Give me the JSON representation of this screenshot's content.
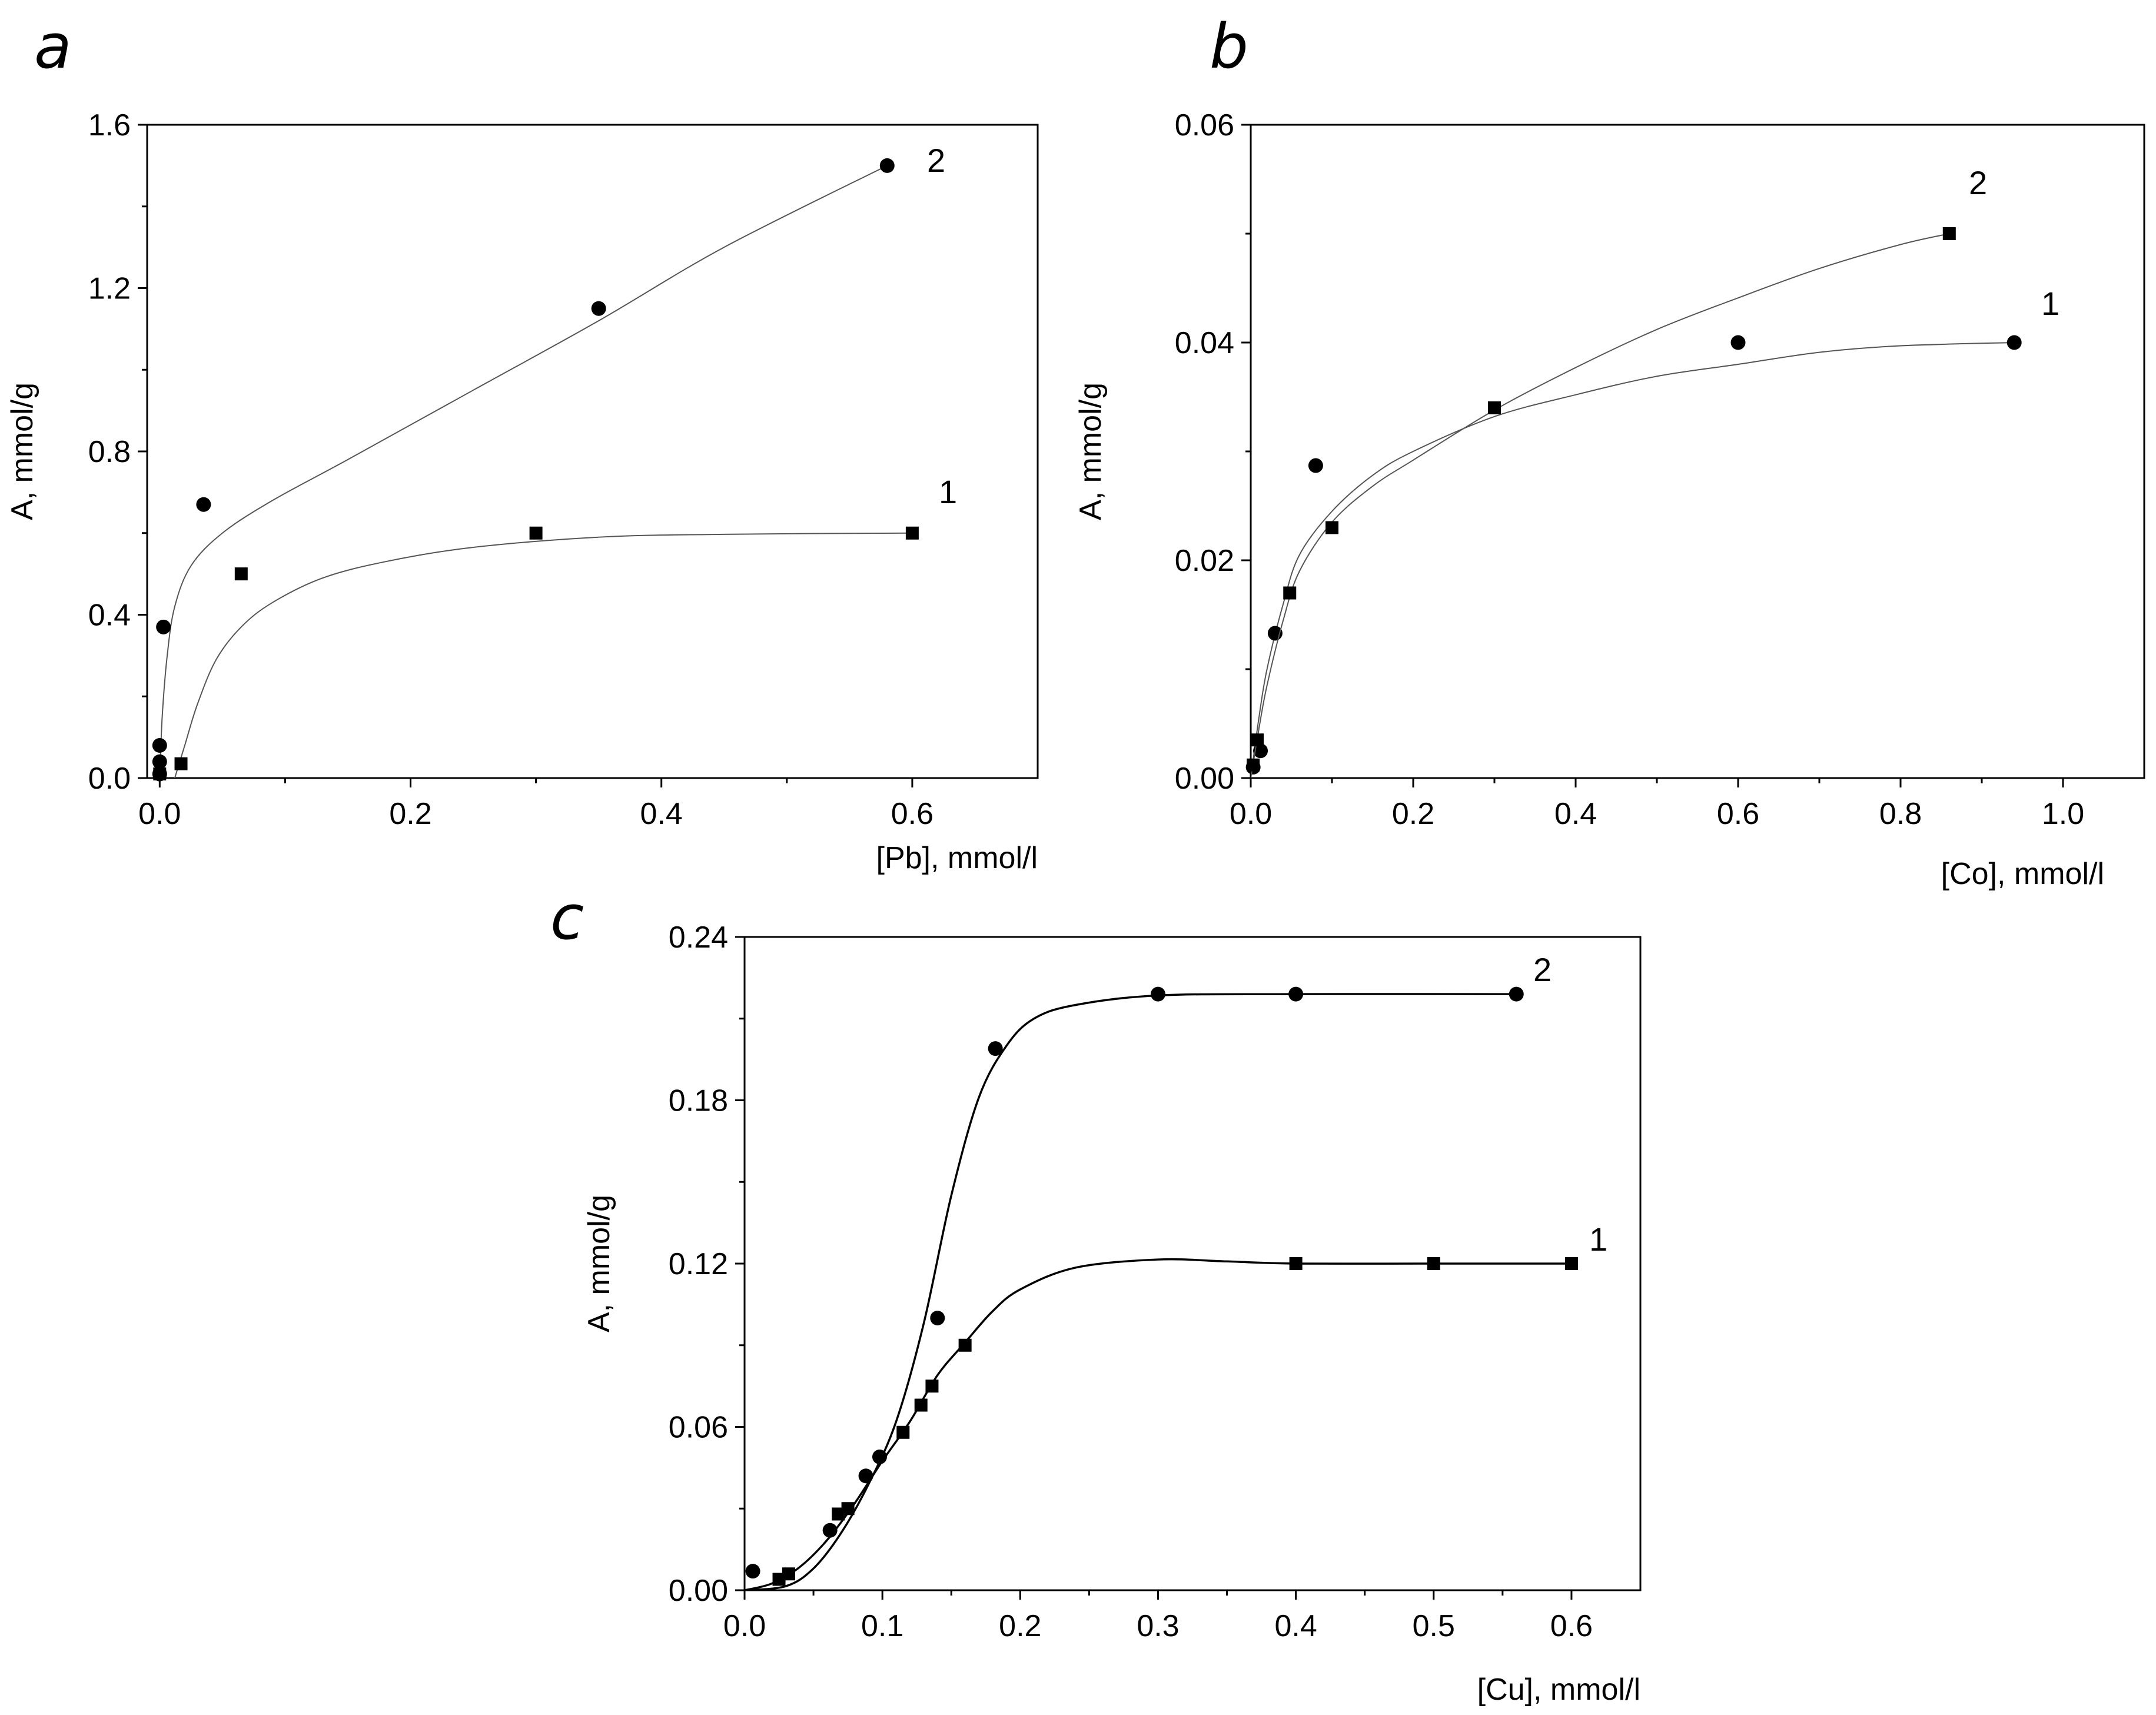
{
  "chart_data": [
    {
      "id": "a",
      "panel_letter": "a",
      "type": "scatter",
      "xlabel": "[Pb], mmol/l",
      "ylabel": "A, mmol/g",
      "xlim": [
        -0.01,
        0.7
      ],
      "ylim": [
        0,
        1.6
      ],
      "xticks": [
        0.0,
        0.2,
        0.4,
        0.6
      ],
      "xtick_labels": [
        "0.0",
        "0.2",
        "0.4",
        "0.6"
      ],
      "yticks": [
        0.0,
        0.4,
        0.8,
        1.2,
        1.6
      ],
      "ytick_labels": [
        "0.0",
        "0.4",
        "0.8",
        "1.2",
        "1.6"
      ],
      "series": [
        {
          "name": "1",
          "marker": "square",
          "x": [
            0.0,
            0.017,
            0.065,
            0.3,
            0.6
          ],
          "y": [
            0.01,
            0.035,
            0.5,
            0.6,
            0.6
          ],
          "fit": [
            [
              0.012,
              0.0
            ],
            [
              0.02,
              0.08
            ],
            [
              0.03,
              0.18
            ],
            [
              0.045,
              0.29
            ],
            [
              0.065,
              0.37
            ],
            [
              0.09,
              0.43
            ],
            [
              0.13,
              0.49
            ],
            [
              0.18,
              0.53
            ],
            [
              0.25,
              0.565
            ],
            [
              0.35,
              0.59
            ],
            [
              0.45,
              0.597
            ],
            [
              0.6,
              0.6
            ]
          ]
        },
        {
          "name": "2",
          "marker": "circle",
          "x": [
            0.0,
            0.0,
            0.0,
            0.003,
            0.035,
            0.35,
            0.58
          ],
          "y": [
            0.01,
            0.04,
            0.08,
            0.37,
            0.67,
            1.15,
            1.5
          ],
          "fit": [
            [
              0.0,
              0.0
            ],
            [
              0.002,
              0.15
            ],
            [
              0.006,
              0.3
            ],
            [
              0.012,
              0.42
            ],
            [
              0.025,
              0.52
            ],
            [
              0.05,
              0.6
            ],
            [
              0.09,
              0.68
            ],
            [
              0.15,
              0.78
            ],
            [
              0.25,
              0.95
            ],
            [
              0.35,
              1.12
            ],
            [
              0.45,
              1.3
            ],
            [
              0.58,
              1.5
            ]
          ]
        }
      ]
    },
    {
      "id": "b",
      "panel_letter": "b",
      "type": "scatter",
      "xlabel": "[Co], mmol/l",
      "ylabel": "A, mmol/g",
      "xlim": [
        0,
        1.1
      ],
      "ylim": [
        0,
        0.06
      ],
      "xticks": [
        0.0,
        0.2,
        0.4,
        0.6,
        0.8,
        1.0
      ],
      "xtick_labels": [
        "0.0",
        "0.2",
        "0.4",
        "0.6",
        "0.8",
        "1.0"
      ],
      "yticks": [
        0.0,
        0.02,
        0.04,
        0.06
      ],
      "ytick_labels": [
        "0.00",
        "0.02",
        "0.04",
        "0.06"
      ],
      "series": [
        {
          "name": "1",
          "marker": "circle",
          "x": [
            0.003,
            0.012,
            0.03,
            0.08,
            0.6,
            0.94
          ],
          "y": [
            0.001,
            0.0025,
            0.0133,
            0.0287,
            0.04,
            0.04
          ],
          "fit": [
            [
              0.0,
              0.0
            ],
            [
              0.01,
              0.0055
            ],
            [
              0.02,
              0.01
            ],
            [
              0.04,
              0.016
            ],
            [
              0.06,
              0.0205
            ],
            [
              0.1,
              0.0245
            ],
            [
              0.15,
              0.0278
            ],
            [
              0.2,
              0.03
            ],
            [
              0.3,
              0.0332
            ],
            [
              0.4,
              0.0352
            ],
            [
              0.5,
              0.0369
            ],
            [
              0.6,
              0.038
            ],
            [
              0.7,
              0.0391
            ],
            [
              0.8,
              0.0397
            ],
            [
              0.94,
              0.04
            ]
          ]
        },
        {
          "name": "2",
          "marker": "square",
          "x": [
            0.003,
            0.008,
            0.048,
            0.1,
            0.3,
            0.86
          ],
          "y": [
            0.0012,
            0.0035,
            0.017,
            0.023,
            0.034,
            0.05
          ],
          "fit": [
            [
              0.0,
              0.0
            ],
            [
              0.01,
              0.0045
            ],
            [
              0.02,
              0.0085
            ],
            [
              0.04,
              0.0145
            ],
            [
              0.06,
              0.019
            ],
            [
              0.1,
              0.0235
            ],
            [
              0.15,
              0.0268
            ],
            [
              0.2,
              0.0292
            ],
            [
              0.3,
              0.0338
            ],
            [
              0.4,
              0.0377
            ],
            [
              0.5,
              0.0412
            ],
            [
              0.6,
              0.0441
            ],
            [
              0.7,
              0.0468
            ],
            [
              0.8,
              0.049
            ],
            [
              0.86,
              0.05
            ]
          ]
        }
      ]
    },
    {
      "id": "c",
      "panel_letter": "c",
      "type": "scatter",
      "xlabel": "[Cu], mmol/l",
      "ylabel": "A, mmol/g",
      "xlim": [
        0,
        0.65
      ],
      "ylim": [
        0,
        0.24
      ],
      "xticks": [
        0.0,
        0.1,
        0.2,
        0.3,
        0.4,
        0.5,
        0.6
      ],
      "xtick_labels": [
        "0.0",
        "0.1",
        "0.2",
        "0.3",
        "0.4",
        "0.5",
        "0.6"
      ],
      "yticks": [
        0.0,
        0.06,
        0.12,
        0.18,
        0.24
      ],
      "ytick_labels": [
        "0.00",
        "0.06",
        "0.12",
        "0.18",
        "0.24"
      ],
      "series": [
        {
          "name": "1",
          "marker": "square",
          "x": [
            0.025,
            0.032,
            0.068,
            0.075,
            0.115,
            0.128,
            0.136,
            0.16,
            0.4,
            0.5,
            0.6
          ],
          "y": [
            0.004,
            0.006,
            0.028,
            0.03,
            0.058,
            0.068,
            0.075,
            0.09,
            0.12,
            0.12,
            0.12
          ],
          "fit": [
            [
              0.0,
              0.0
            ],
            [
              0.02,
              0.0025
            ],
            [
              0.04,
              0.0085
            ],
            [
              0.06,
              0.0185
            ],
            [
              0.08,
              0.032
            ],
            [
              0.1,
              0.0475
            ],
            [
              0.12,
              0.062
            ],
            [
              0.14,
              0.079
            ],
            [
              0.16,
              0.091
            ],
            [
              0.18,
              0.1025
            ],
            [
              0.2,
              0.1105
            ],
            [
              0.24,
              0.1185
            ],
            [
              0.3,
              0.1215
            ],
            [
              0.35,
              0.1208
            ],
            [
              0.4,
              0.12
            ],
            [
              0.5,
              0.12
            ],
            [
              0.6,
              0.12
            ]
          ]
        },
        {
          "name": "2",
          "marker": "circle",
          "x": [
            0.006,
            0.062,
            0.088,
            0.098,
            0.14,
            0.182,
            0.3,
            0.4,
            0.56
          ],
          "y": [
            0.007,
            0.022,
            0.042,
            0.049,
            0.1,
            0.199,
            0.219,
            0.219,
            0.219
          ],
          "fit": [
            [
              0.0,
              0.0
            ],
            [
              0.03,
              0.0015
            ],
            [
              0.05,
              0.008
            ],
            [
              0.07,
              0.021
            ],
            [
              0.09,
              0.039
            ],
            [
              0.11,
              0.062
            ],
            [
              0.13,
              0.098
            ],
            [
              0.15,
              0.145
            ],
            [
              0.17,
              0.181
            ],
            [
              0.19,
              0.2
            ],
            [
              0.21,
              0.21
            ],
            [
              0.24,
              0.215
            ],
            [
              0.3,
              0.2185
            ],
            [
              0.4,
              0.219
            ],
            [
              0.56,
              0.219
            ]
          ]
        }
      ]
    }
  ]
}
